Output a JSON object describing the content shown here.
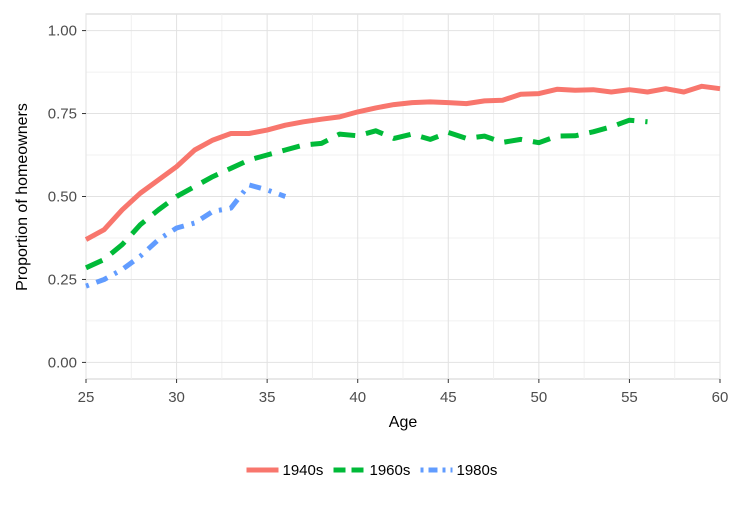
{
  "chart_data": {
    "type": "line",
    "title": "",
    "xlabel": "Age",
    "ylabel": "Proportion of homeowners",
    "xlim": [
      25,
      60
    ],
    "ylim": [
      -0.05,
      1.05
    ],
    "x_ticks": [
      25,
      30,
      35,
      40,
      45,
      50,
      55,
      60
    ],
    "x_tick_labels": [
      "25",
      "30",
      "35",
      "40",
      "45",
      "50",
      "55",
      "60"
    ],
    "y_ticks": [
      0,
      0.25,
      0.5,
      0.75,
      1.0
    ],
    "y_tick_labels": [
      "0.00",
      "0.25",
      "0.50",
      "0.75",
      "1.00"
    ],
    "grid": true,
    "legend_position": "bottom",
    "series": [
      {
        "name": "1940s",
        "color": "#F8766D",
        "line_style": "solid",
        "x": [
          25,
          26,
          27,
          28,
          29,
          30,
          31,
          32,
          33,
          34,
          35,
          36,
          37,
          38,
          39,
          40,
          41,
          42,
          43,
          44,
          45,
          46,
          47,
          48,
          49,
          50,
          51,
          52,
          53,
          54,
          55,
          56,
          57,
          58,
          59,
          60
        ],
        "y": [
          0.37,
          0.4,
          0.46,
          0.51,
          0.55,
          0.59,
          0.64,
          0.67,
          0.69,
          0.69,
          0.7,
          0.715,
          0.725,
          0.733,
          0.74,
          0.755,
          0.767,
          0.777,
          0.783,
          0.785,
          0.783,
          0.78,
          0.788,
          0.79,
          0.808,
          0.81,
          0.823,
          0.82,
          0.822,
          0.815,
          0.822,
          0.815,
          0.825,
          0.815,
          0.832,
          0.825
        ]
      },
      {
        "name": "1960s",
        "color": "#00BA38",
        "line_style": "dashed",
        "x": [
          25,
          26,
          27,
          28,
          29,
          30,
          31,
          32,
          33,
          34,
          35,
          36,
          37,
          38,
          39,
          40,
          41,
          42,
          43,
          44,
          45,
          46,
          47,
          48,
          49,
          50,
          51,
          52,
          53,
          54,
          55,
          56
        ],
        "y": [
          0.285,
          0.31,
          0.355,
          0.415,
          0.46,
          0.5,
          0.53,
          0.56,
          0.585,
          0.61,
          0.625,
          0.64,
          0.655,
          0.66,
          0.688,
          0.683,
          0.698,
          0.675,
          0.688,
          0.672,
          0.693,
          0.675,
          0.682,
          0.663,
          0.672,
          0.662,
          0.682,
          0.683,
          0.695,
          0.71,
          0.73,
          0.725
        ]
      },
      {
        "name": "1980s",
        "color": "#619CFF",
        "line_style": "dotdash",
        "x": [
          25,
          26,
          27,
          28,
          29,
          30,
          31,
          32,
          33,
          34,
          35,
          36
        ],
        "y": [
          0.23,
          0.25,
          0.28,
          0.32,
          0.37,
          0.405,
          0.42,
          0.455,
          0.465,
          0.535,
          0.52,
          0.5
        ]
      }
    ]
  }
}
